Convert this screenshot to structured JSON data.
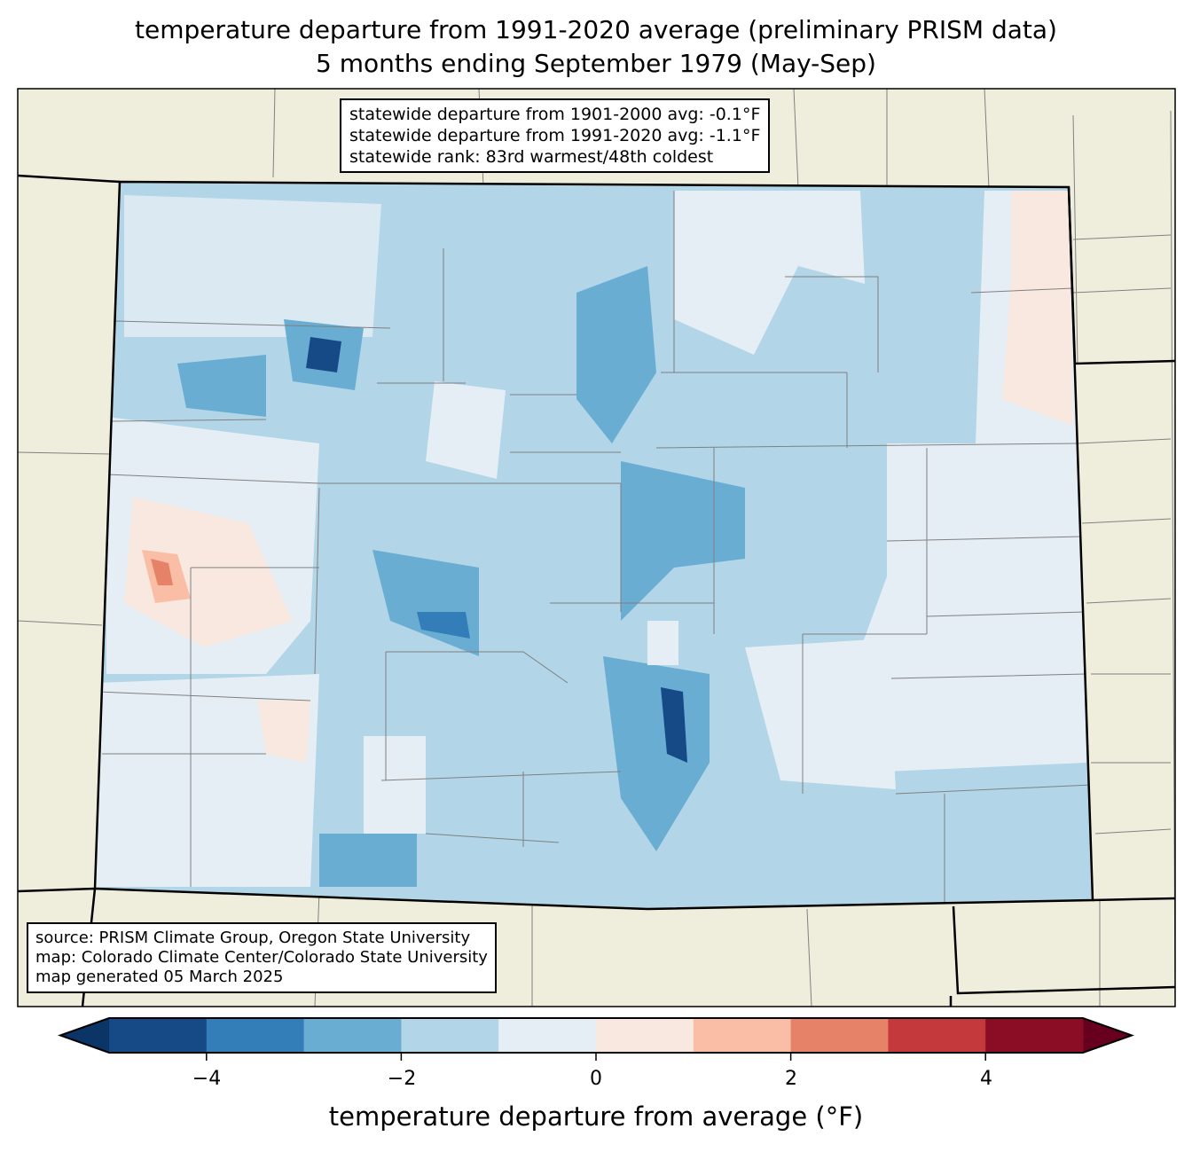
{
  "title_line1": "temperature departure from 1991-2020 average (preliminary PRISM data)",
  "title_line2": "5 months ending September 1979 (May-Sep)",
  "stats": {
    "line1": "statewide departure from 1901-2000 avg: -0.1°F",
    "line2": "statewide departure from 1991-2020 avg: -1.1°F",
    "line3": "statewide rank: 83rd warmest/48th coldest"
  },
  "credits": {
    "line1": "source: PRISM Climate Group, Oregon State University",
    "line2": "map: Colorado Climate Center/Colorado State University",
    "line3": "map generated 05 March 2025"
  },
  "colorbar": {
    "label": "temperature departure from average (°F)",
    "ticks": [
      "−4",
      "−2",
      "0",
      "2",
      "4"
    ],
    "tick_values": [
      -4,
      -2,
      0,
      2,
      4
    ],
    "range": [
      -5,
      5
    ],
    "colors": [
      "#0b3566",
      "#164a86",
      "#337eb8",
      "#6aadd3",
      "#b2d5e7",
      "#e5eef5",
      "#f9e8e0",
      "#f9bea5",
      "#e58267",
      "#c3393c",
      "#8a0c25",
      "#67001f"
    ]
  },
  "map_colors": {
    "land": "#efeedd",
    "border": "#000000",
    "county": "#808080"
  }
}
